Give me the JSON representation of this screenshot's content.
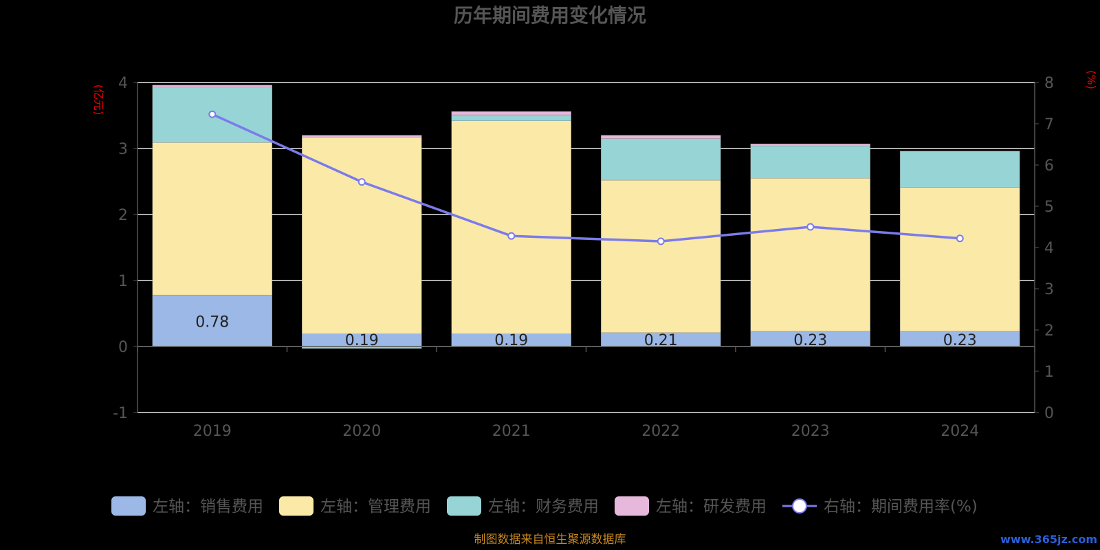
{
  "chart_data": {
    "type": "bar",
    "stacked": true,
    "title": "历年期间费用变化情况",
    "categories": [
      "2019",
      "2020",
      "2021",
      "2022",
      "2023",
      "2024"
    ],
    "y_left": {
      "unit": "(亿元)",
      "min": -1,
      "max": 4,
      "ticks": [
        "-1",
        "0",
        "1",
        "2",
        "3",
        "4"
      ]
    },
    "y_right": {
      "unit": "(%)",
      "min": 0,
      "max": 8,
      "ticks": [
        "0",
        "1",
        "2",
        "3",
        "4",
        "5",
        "6",
        "7",
        "8"
      ]
    },
    "series": [
      {
        "name": "左轴：销售费用",
        "type": "bar",
        "color": "#9bb8e6",
        "values": [
          0.78,
          0.19,
          0.19,
          0.21,
          0.23,
          0.23
        ],
        "labels": [
          "0.78",
          "0.19",
          "0.19",
          "0.21",
          "0.23",
          "0.23"
        ]
      },
      {
        "name": "左轴：管理费用",
        "type": "bar",
        "color": "#fbe9a8",
        "values": [
          2.31,
          2.98,
          3.23,
          2.31,
          2.32,
          2.18
        ]
      },
      {
        "name": "左轴：财务费用",
        "type": "bar",
        "color": "#97d4d6",
        "values": [
          0.84,
          -0.03,
          0.09,
          0.63,
          0.49,
          0.55
        ]
      },
      {
        "name": "左轴：研发费用",
        "type": "bar",
        "color": "#e6b8dc",
        "values": [
          0.03,
          0.03,
          0.05,
          0.05,
          0.03,
          0.0
        ]
      },
      {
        "name": "右轴：期间费用率(%)",
        "type": "line",
        "axis": "right",
        "color": "#7b7beb",
        "values": [
          7.23,
          5.59,
          4.28,
          4.15,
          4.5,
          4.22
        ]
      }
    ],
    "legend": "bottom",
    "grid": true
  },
  "footer": {
    "source": "制图数据来自恒生聚源数据库"
  },
  "watermark": "www.365jz.com"
}
